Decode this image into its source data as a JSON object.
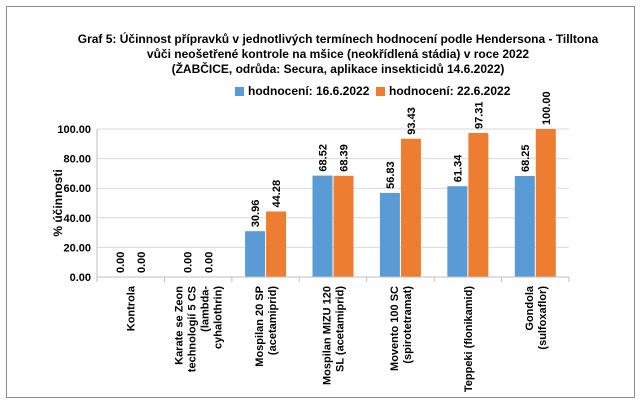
{
  "chart_data": {
    "type": "bar",
    "title_lines": [
      "Graf 5: Účinnost přípravků v jednotlivých termínech hodnocení podle Hendersona - Tilltona",
      "vůči neošetřené kontrole na mšice (neokřídlená stádia) v roce 2022",
      "(ŽABČICE, odrůda: Secura, aplikace insekticidů 14.6.2022)"
    ],
    "ylabel": "% účinnosti",
    "ylim": [
      0,
      100
    ],
    "yticks": [
      "0.00",
      "20.00",
      "40.00",
      "60.00",
      "80.00",
      "100.00"
    ],
    "grid": true,
    "legend_position": "top",
    "categories": [
      [
        "Kontrola"
      ],
      [
        "Karate se Zeon",
        "technologií 5 CS",
        "(lambda-",
        "cyhalothrin)"
      ],
      [
        "Mospilan 20 SP",
        "(acetamiprid)"
      ],
      [
        "Mospilan MIZU 120",
        "SL (acetamiprid)"
      ],
      [
        "Movento 100 SC",
        "(spirotetramat)"
      ],
      [
        "Teppeki (flonikamid)"
      ],
      [
        "Gondola",
        "(sulfoxaflor)"
      ]
    ],
    "series": [
      {
        "name": "hodnocení: 16.6.2022",
        "color": "#5b9bd5",
        "values": [
          0.0,
          0.0,
          30.96,
          68.52,
          56.83,
          61.34,
          68.25
        ],
        "labels": [
          "0.00",
          "0.00",
          "30.96",
          "68.52",
          "56.83",
          "61.34",
          "68.25"
        ]
      },
      {
        "name": "hodnocení: 22.6.2022",
        "color": "#ed7d31",
        "values": [
          0.0,
          0.0,
          44.28,
          68.39,
          93.43,
          97.31,
          100.0
        ],
        "labels": [
          "0.00",
          "0.00",
          "44.28",
          "68.39",
          "93.43",
          "97.31",
          "100.00"
        ]
      }
    ]
  }
}
